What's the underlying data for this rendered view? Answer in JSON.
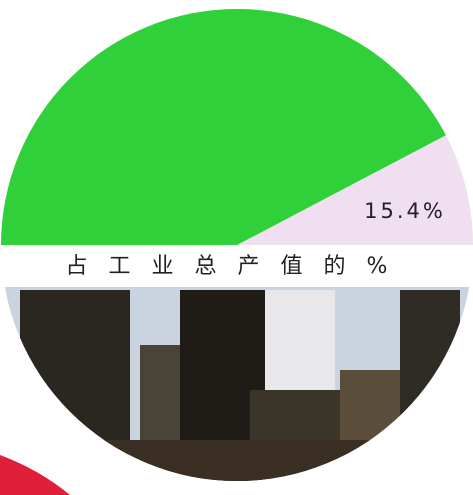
{
  "chart_data": {
    "type": "pie",
    "span_degrees": 180,
    "title": "占工业总产值的%",
    "values": [
      15.4,
      84.6
    ],
    "value_labels": [
      "15.4%"
    ],
    "colors": [
      "#efdff0",
      "#2fd03a"
    ]
  }
}
